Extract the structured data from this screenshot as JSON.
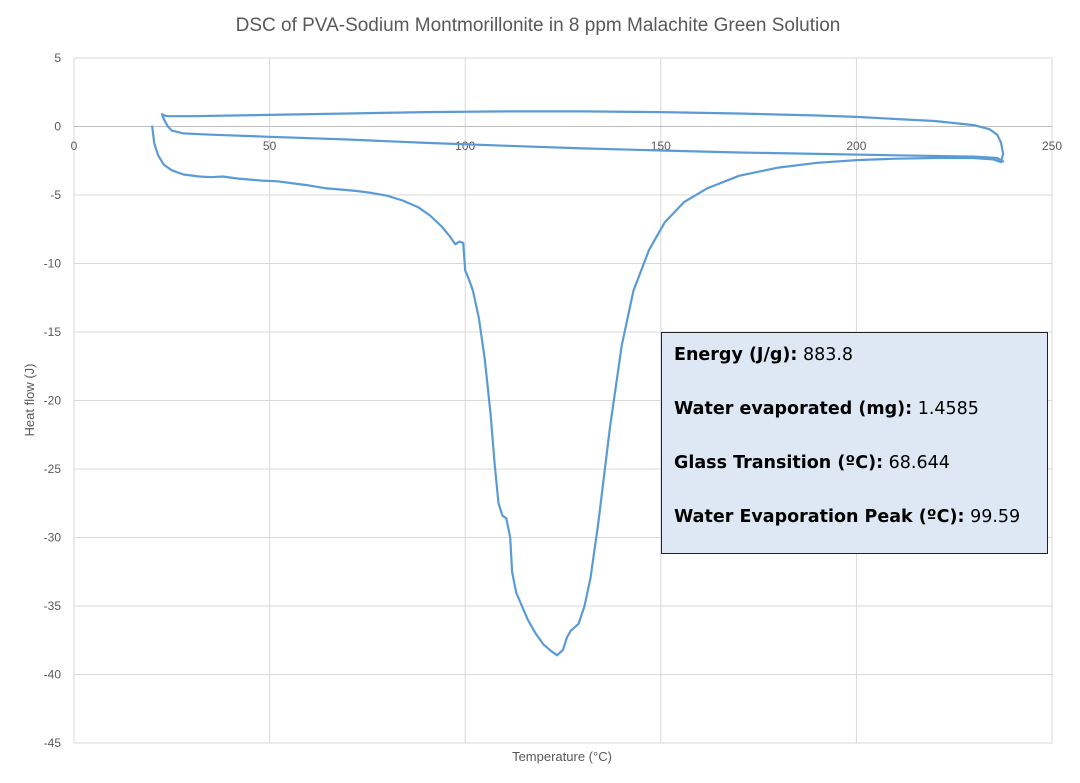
{
  "chart_data": {
    "type": "scatter",
    "title": "DSC of PVA-Sodium Montmorillonite in 8 ppm Malachite Green Solution",
    "xlabel": "Temperature (°C)",
    "ylabel": "Heat flow (J)",
    "xlim": [
      0,
      250
    ],
    "ylim": [
      -45,
      5
    ],
    "x_ticks": [
      "0",
      "50",
      "100",
      "150",
      "200",
      "250"
    ],
    "y_ticks": [
      "5",
      "0",
      "-5",
      "-10",
      "-15",
      "-20",
      "-25",
      "-30",
      "-35",
      "-40",
      "-45"
    ],
    "grid": true,
    "line_color": "#5b9bd5",
    "series": [
      {
        "points": [
          [
            20,
            0.0
          ],
          [
            20.5,
            -1.2
          ],
          [
            21.5,
            -2.1
          ],
          [
            23,
            -2.8
          ],
          [
            25,
            -3.2
          ],
          [
            28,
            -3.5
          ],
          [
            32,
            -3.65
          ],
          [
            35,
            -3.7
          ],
          [
            38,
            -3.65
          ],
          [
            42,
            -3.8
          ],
          [
            48,
            -3.95
          ],
          [
            52,
            -4.0
          ],
          [
            56,
            -4.15
          ],
          [
            60,
            -4.3
          ],
          [
            64,
            -4.5
          ],
          [
            68,
            -4.6
          ],
          [
            72,
            -4.7
          ],
          [
            76,
            -4.85
          ],
          [
            80,
            -5.05
          ],
          [
            84,
            -5.4
          ],
          [
            88,
            -5.9
          ],
          [
            91,
            -6.5
          ],
          [
            94,
            -7.3
          ],
          [
            96,
            -8.0
          ],
          [
            97.5,
            -8.6
          ],
          [
            98.5,
            -8.4
          ],
          [
            99.5,
            -8.5
          ],
          [
            100,
            -10.5
          ],
          [
            101,
            -11.2
          ],
          [
            102,
            -12.0
          ],
          [
            103.5,
            -14.0
          ],
          [
            105,
            -17.0
          ],
          [
            106.5,
            -21.0
          ],
          [
            107.5,
            -24.5
          ],
          [
            108.5,
            -27.5
          ],
          [
            109.5,
            -28.4
          ],
          [
            110.5,
            -28.6
          ],
          [
            111.5,
            -30.0
          ],
          [
            112,
            -32.5
          ],
          [
            113,
            -34.0
          ],
          [
            114.5,
            -35.0
          ],
          [
            116,
            -36.0
          ],
          [
            118,
            -37.0
          ],
          [
            120,
            -37.8
          ],
          [
            122,
            -38.3
          ],
          [
            123.5,
            -38.6
          ],
          [
            125,
            -38.2
          ],
          [
            126,
            -37.3
          ],
          [
            127,
            -36.8
          ],
          [
            129,
            -36.3
          ],
          [
            130.5,
            -35.0
          ],
          [
            132,
            -33.0
          ],
          [
            134,
            -29.0
          ],
          [
            137,
            -22.0
          ],
          [
            140,
            -16.0
          ],
          [
            143,
            -12.0
          ],
          [
            147,
            -9.0
          ],
          [
            151,
            -7.0
          ],
          [
            156,
            -5.5
          ],
          [
            162,
            -4.5
          ],
          [
            170,
            -3.6
          ],
          [
            180,
            -3.0
          ],
          [
            190,
            -2.65
          ],
          [
            200,
            -2.45
          ],
          [
            210,
            -2.35
          ],
          [
            220,
            -2.3
          ],
          [
            230,
            -2.3
          ],
          [
            235,
            -2.4
          ],
          [
            237,
            -2.6
          ],
          [
            237.5,
            -2.0
          ],
          [
            237,
            -1.2
          ],
          [
            236,
            -0.6
          ],
          [
            234,
            -0.2
          ],
          [
            230,
            0.1
          ],
          [
            220,
            0.4
          ],
          [
            210,
            0.55
          ],
          [
            200,
            0.7
          ],
          [
            190,
            0.8
          ],
          [
            170,
            0.95
          ],
          [
            150,
            1.05
          ],
          [
            130,
            1.1
          ],
          [
            110,
            1.1
          ],
          [
            90,
            1.05
          ],
          [
            70,
            0.95
          ],
          [
            50,
            0.85
          ],
          [
            30,
            0.75
          ],
          [
            24,
            0.75
          ],
          [
            23,
            0.8
          ],
          [
            22.5,
            0.9
          ],
          [
            23,
            0.5
          ],
          [
            24,
            0.0
          ],
          [
            25,
            -0.3
          ],
          [
            28,
            -0.5
          ],
          [
            35,
            -0.6
          ],
          [
            50,
            -0.75
          ],
          [
            70,
            -0.95
          ],
          [
            90,
            -1.2
          ],
          [
            110,
            -1.4
          ],
          [
            130,
            -1.6
          ],
          [
            150,
            -1.75
          ],
          [
            170,
            -1.9
          ],
          [
            190,
            -2.0
          ],
          [
            210,
            -2.1
          ],
          [
            230,
            -2.2
          ],
          [
            236,
            -2.3
          ],
          [
            237.5,
            -2.55
          ]
        ]
      }
    ]
  },
  "info_box": {
    "rows": [
      {
        "label": "Energy (J/g):",
        "value": " 883.8"
      },
      {
        "label": "Water evaporated (mg):",
        "value": " 1.4585"
      },
      {
        "label": "Glass Transition (ºC):",
        "value": " 68.644"
      },
      {
        "label": "Water Evaporation Peak (ºC):",
        "value": " 99.59"
      }
    ]
  }
}
